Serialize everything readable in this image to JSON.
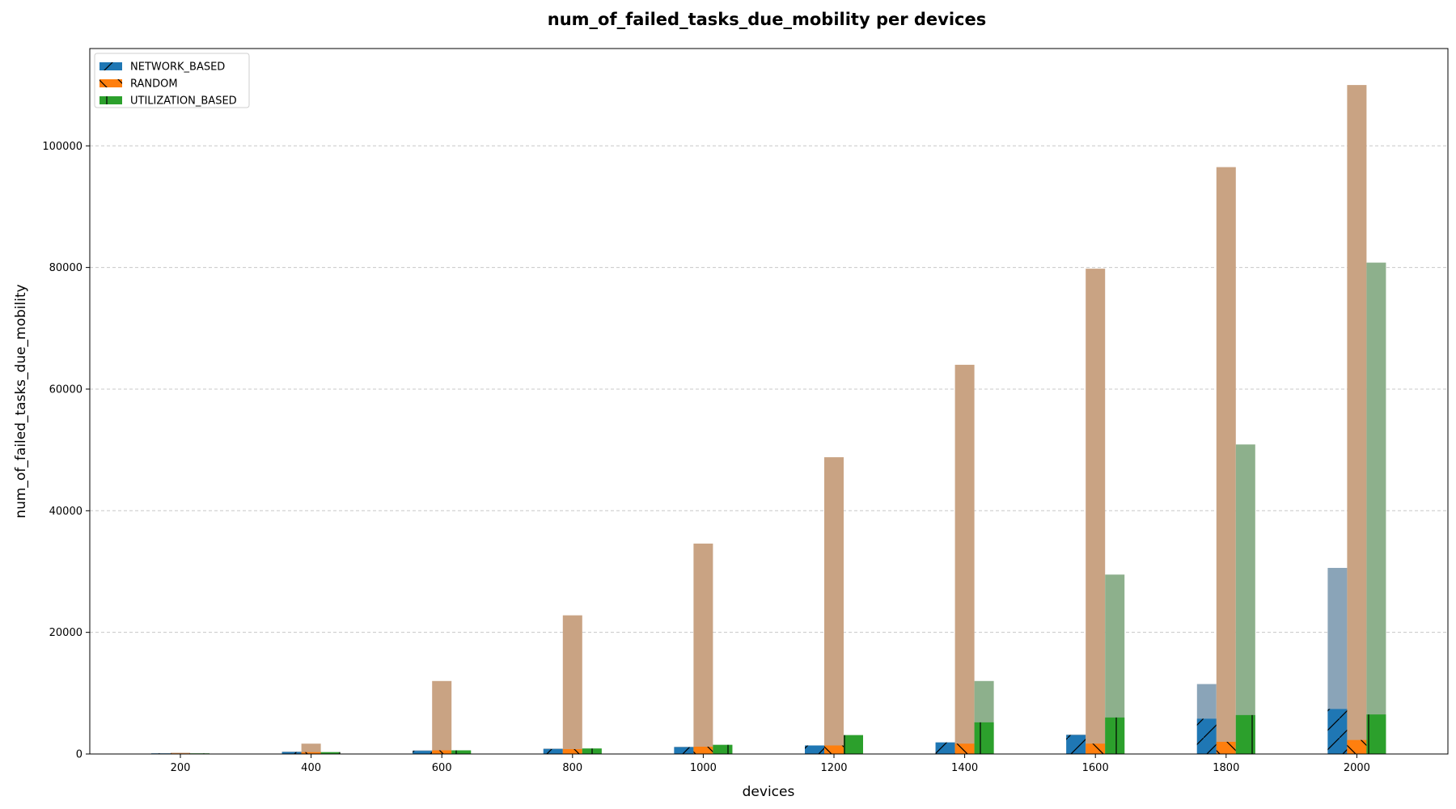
{
  "chart_data": {
    "type": "bar",
    "title": "num_of_failed_tasks_due_mobility per devices",
    "xlabel": "devices",
    "ylabel": "num_of_failed_tasks_due_mobility",
    "categories": [
      "200",
      "400",
      "600",
      "800",
      "1000",
      "1200",
      "1400",
      "1600",
      "1800",
      "2000"
    ],
    "ylim": [
      0,
      116000
    ],
    "yticks": [
      0,
      20000,
      40000,
      60000,
      80000,
      100000
    ],
    "grid": "y-dashed",
    "legend_position": "top-left",
    "bar_overlay_note": "each series has a lighter background total bar with a darker foreground bar",
    "series": [
      {
        "name": "NETWORK_BASED",
        "color": "#1f77b4",
        "background_color": "#8aa4b8",
        "hatch": "forward-slash",
        "background_values": [
          100,
          400,
          600,
          900,
          1200,
          1400,
          1900,
          3200,
          11500,
          30600
        ],
        "values": [
          100,
          300,
          500,
          800,
          1100,
          1400,
          1900,
          3100,
          5800,
          7400
        ]
      },
      {
        "name": "RANDOM",
        "color": "#ff7f0e",
        "background_color": "#c9a383",
        "hatch": "back-slash",
        "background_values": [
          200,
          1700,
          12000,
          22800,
          34600,
          48800,
          64000,
          79800,
          96500,
          110000
        ],
        "values": [
          100,
          300,
          600,
          800,
          1200,
          1400,
          1700,
          1700,
          2000,
          2300
        ]
      },
      {
        "name": "UTILIZATION_BASED",
        "color": "#2ca02c",
        "background_color": "#8db08c",
        "hatch": "vertical",
        "background_values": [
          100,
          300,
          600,
          900,
          1500,
          3100,
          12000,
          29500,
          50900,
          80800
        ],
        "values": [
          100,
          300,
          600,
          900,
          1500,
          3100,
          5200,
          6000,
          6400,
          6500
        ]
      }
    ]
  }
}
